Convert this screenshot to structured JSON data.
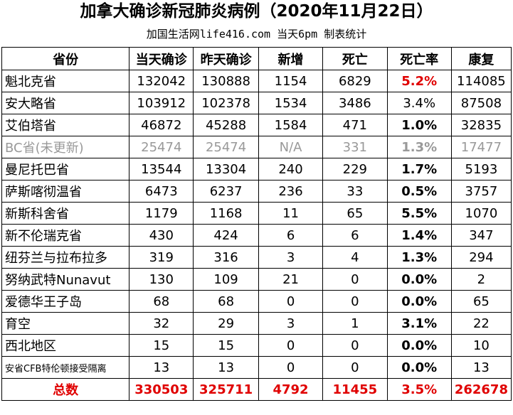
{
  "header": {
    "title": "加拿大确诊新冠肺炎病例（2020年11月22日）",
    "subtitle": "加国生活网life416.com 当天6pm 制表统计"
  },
  "table": {
    "columns": [
      "省份",
      "当天确诊",
      "昨天确诊",
      "新增",
      "死亡",
      "死亡率",
      "康复"
    ],
    "rows": [
      [
        "魁北克省",
        "132042",
        "130888",
        "1154",
        "6829",
        "5.2%",
        "114085"
      ],
      [
        "安大略省",
        "103912",
        "102378",
        "1534",
        "3486",
        "3.4%",
        "87508"
      ],
      [
        "艾伯塔省",
        "46872",
        "45288",
        "1584",
        "471",
        "1.0%",
        "32835"
      ],
      [
        "BC省(未更新)",
        "25474",
        "25474",
        "N/A",
        "331",
        "1.3%",
        "17477"
      ],
      [
        "曼尼托巴省",
        "13544",
        "13304",
        "240",
        "229",
        "1.7%",
        "5193"
      ],
      [
        "萨斯喀彻温省",
        "6473",
        "6237",
        "236",
        "33",
        "0.5%",
        "3757"
      ],
      [
        "新斯科舍省",
        "1179",
        "1168",
        "11",
        "65",
        "5.5%",
        "1070"
      ],
      [
        "新不伦瑞克省",
        "430",
        "424",
        "6",
        "6",
        "1.4%",
        "347"
      ],
      [
        "纽芬兰与拉布拉多",
        "319",
        "316",
        "3",
        "4",
        "1.3%",
        "294"
      ],
      [
        "努纳武特Nunavut",
        "130",
        "109",
        "21",
        "0",
        "0.0%",
        "2"
      ],
      [
        "爱德华王子岛",
        "68",
        "68",
        "0",
        "0",
        "0.0%",
        "65"
      ],
      [
        "育空",
        "32",
        "29",
        "3",
        "1",
        "3.1%",
        "22"
      ],
      [
        "西北地区",
        "15",
        "15",
        "0",
        "0",
        "0.0%",
        "10"
      ],
      [
        "安省CFB特伦顿接受隔离",
        "13",
        "13",
        "0",
        "0",
        "0.0%",
        "13"
      ]
    ],
    "total": [
      "总数",
      "330503",
      "325711",
      "4792",
      "11455",
      "3.5%",
      "262678"
    ]
  }
}
